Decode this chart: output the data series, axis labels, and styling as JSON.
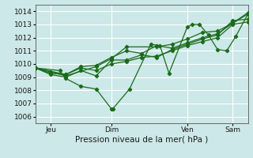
{
  "title": "",
  "xlabel": "Pression niveau de la mer( hPa )",
  "ylabel": "",
  "bg_color": "#cce8e8",
  "grid_color": "#ffffff",
  "line_color": "#1a6b1a",
  "ylim": [
    1005.5,
    1014.5
  ],
  "xlim": [
    0,
    7.0
  ],
  "yticks": [
    1006,
    1007,
    1008,
    1009,
    1010,
    1011,
    1012,
    1013,
    1014
  ],
  "xtick_positions": [
    0.5,
    2.5,
    5.0,
    6.5
  ],
  "xtick_labels": [
    "Jeu",
    "Dim",
    "Ven",
    "Sam"
  ],
  "series": [
    [
      0.0,
      1009.7,
      0.8,
      1009.5,
      1.0,
      1008.9,
      1.5,
      1008.3,
      2.0,
      1008.1,
      2.5,
      1006.6,
      2.55,
      1006.6,
      3.1,
      1008.1,
      3.8,
      1011.5,
      4.1,
      1011.4,
      4.4,
      1009.3,
      5.0,
      1012.8,
      5.15,
      1013.0,
      5.4,
      1013.0,
      5.7,
      1012.2,
      6.0,
      1011.1,
      6.3,
      1011.0,
      6.6,
      1012.1,
      7.0,
      1013.8
    ],
    [
      0.0,
      1009.7,
      0.5,
      1009.2,
      1.0,
      1009.0,
      1.5,
      1009.5,
      2.0,
      1009.1,
      2.5,
      1010.3,
      3.0,
      1010.3,
      3.5,
      1010.7,
      4.0,
      1010.5,
      4.5,
      1011.1,
      5.0,
      1011.5,
      5.5,
      1011.9,
      6.0,
      1012.2,
      6.5,
      1013.3,
      7.0,
      1013.4
    ],
    [
      0.0,
      1009.7,
      0.5,
      1009.3,
      1.0,
      1009.2,
      1.5,
      1009.7,
      2.0,
      1009.5,
      2.5,
      1010.0,
      3.0,
      1010.2,
      3.5,
      1010.5,
      4.0,
      1010.6,
      4.5,
      1011.0,
      5.0,
      1011.4,
      5.5,
      1011.7,
      6.0,
      1012.0,
      6.5,
      1013.0,
      7.0,
      1013.2
    ],
    [
      0.0,
      1009.7,
      1.0,
      1009.2,
      1.5,
      1009.8,
      2.0,
      1009.9,
      2.5,
      1010.5,
      3.0,
      1011.0,
      3.5,
      1010.8,
      4.0,
      1011.4,
      4.5,
      1011.2,
      5.0,
      1011.6,
      5.5,
      1012.0,
      6.0,
      1012.3,
      6.5,
      1013.1,
      7.0,
      1013.9
    ],
    [
      0.0,
      1009.7,
      0.5,
      1009.4,
      1.0,
      1009.1,
      2.0,
      1009.8,
      2.5,
      1010.4,
      3.0,
      1011.3,
      4.0,
      1011.3,
      4.5,
      1011.5,
      5.0,
      1011.9,
      5.5,
      1012.4,
      6.0,
      1012.5,
      6.5,
      1013.1,
      7.0,
      1013.8
    ]
  ],
  "marker": "D",
  "markersize": 2.2,
  "linewidth": 0.9
}
